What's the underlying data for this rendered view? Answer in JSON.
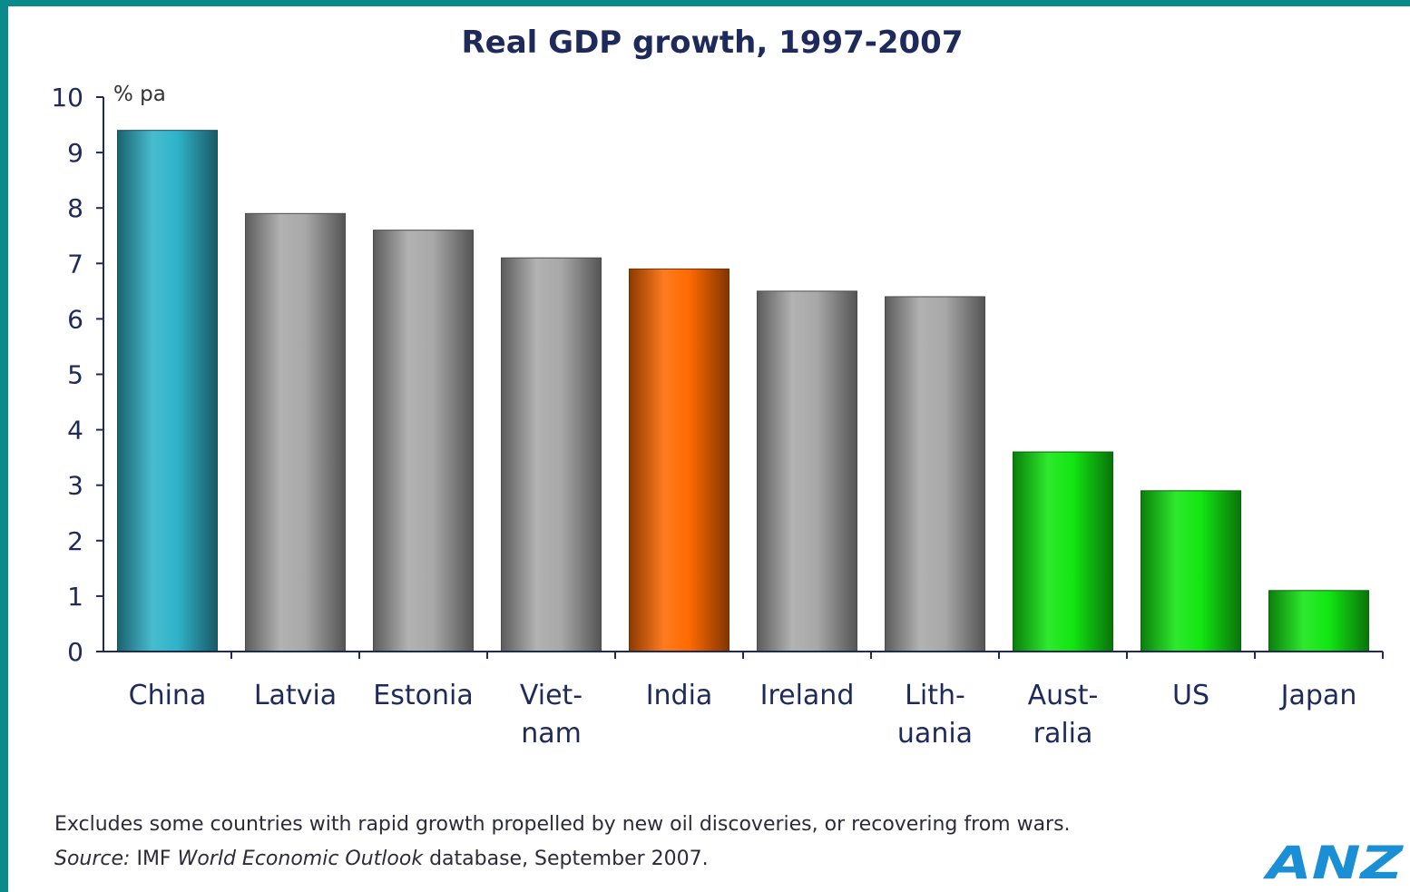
{
  "chart_data": {
    "type": "bar",
    "title": "Real GDP growth, 1997-2007",
    "ylabel": "% pa",
    "xlabel": "",
    "ylim": [
      0,
      10
    ],
    "yticks": [
      0,
      1,
      2,
      3,
      4,
      5,
      6,
      7,
      8,
      9,
      10
    ],
    "categories": [
      [
        "China"
      ],
      [
        "Latvia"
      ],
      [
        "Estonia"
      ],
      [
        "Viet-",
        "nam"
      ],
      [
        "India"
      ],
      [
        "Ireland"
      ],
      [
        "Lith-",
        "uania"
      ],
      [
        "Aust-",
        "ralia"
      ],
      [
        "US"
      ],
      [
        "Japan"
      ]
    ],
    "values": [
      9.4,
      7.9,
      7.6,
      7.1,
      6.9,
      6.5,
      6.4,
      3.6,
      2.9,
      1.1
    ],
    "bar_colors": [
      "#2fb3c9",
      "#a8a8a8",
      "#a8a8a8",
      "#a8a8a8",
      "#ff6a00",
      "#a8a8a8",
      "#a8a8a8",
      "#12e612",
      "#12e612",
      "#12e612"
    ],
    "grid": false,
    "legend": "none"
  },
  "footer": {
    "note": "Excludes some countries with rapid growth propelled by new oil discoveries, or recovering from wars.",
    "source_label": "Source:",
    "source_mid": " IMF ",
    "source_pub": "World Economic Outlook",
    "source_tail": " database, September 2007."
  },
  "logo": {
    "text": "ANZ",
    "color": "#1a8fd6"
  },
  "frame_color": "#0a8a8a"
}
